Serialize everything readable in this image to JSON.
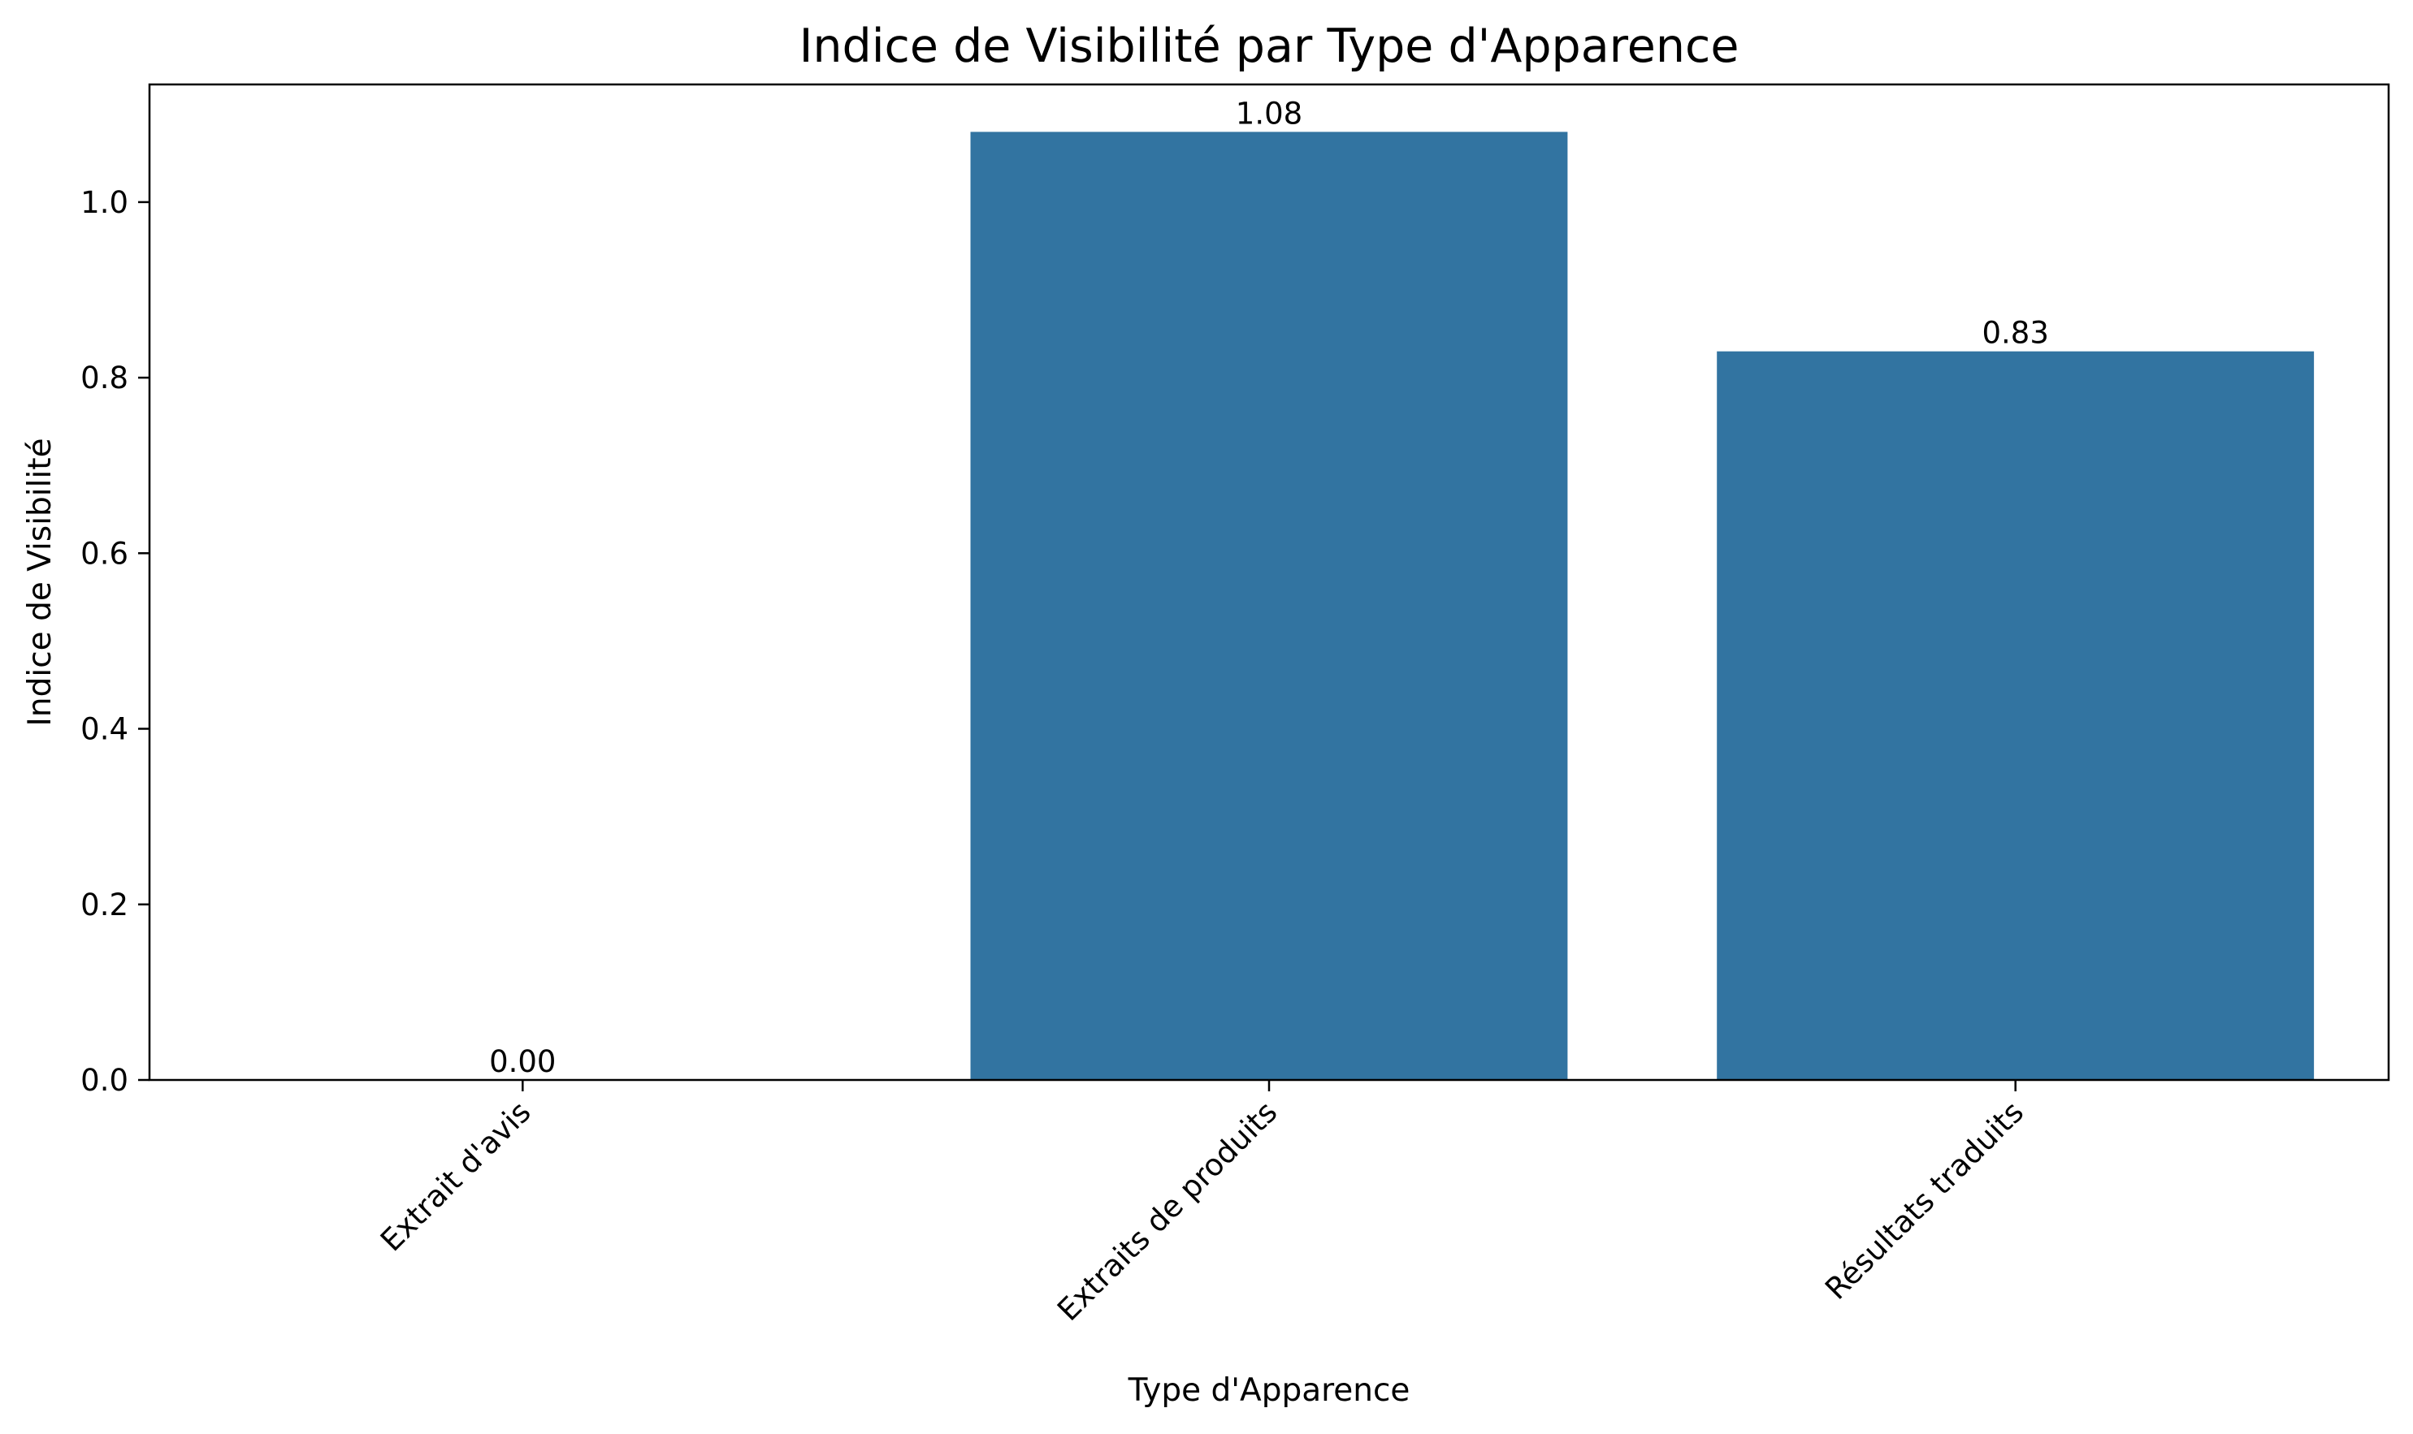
{
  "chart_data": {
    "type": "bar",
    "title": "Indice de Visibilité par Type d'Apparence",
    "xlabel": "Type d'Apparence",
    "ylabel": "Indice de Visibilité",
    "categories": [
      "Extrait d'avis",
      "Extraits de produits",
      "Résultats traduits"
    ],
    "values": [
      0.0,
      1.08,
      0.83
    ],
    "value_labels": [
      "0.00",
      "1.08",
      "0.83"
    ],
    "ylim": [
      0,
      1.134
    ],
    "yticks": [
      0.0,
      0.2,
      0.4,
      0.6,
      0.8,
      1.0
    ],
    "ytick_labels": [
      "0.0",
      "0.2",
      "0.4",
      "0.6",
      "0.8",
      "1.0"
    ],
    "bar_color": "#3274a1",
    "grid": false,
    "legend": "none",
    "xtick_rotation": "45 degrees"
  }
}
